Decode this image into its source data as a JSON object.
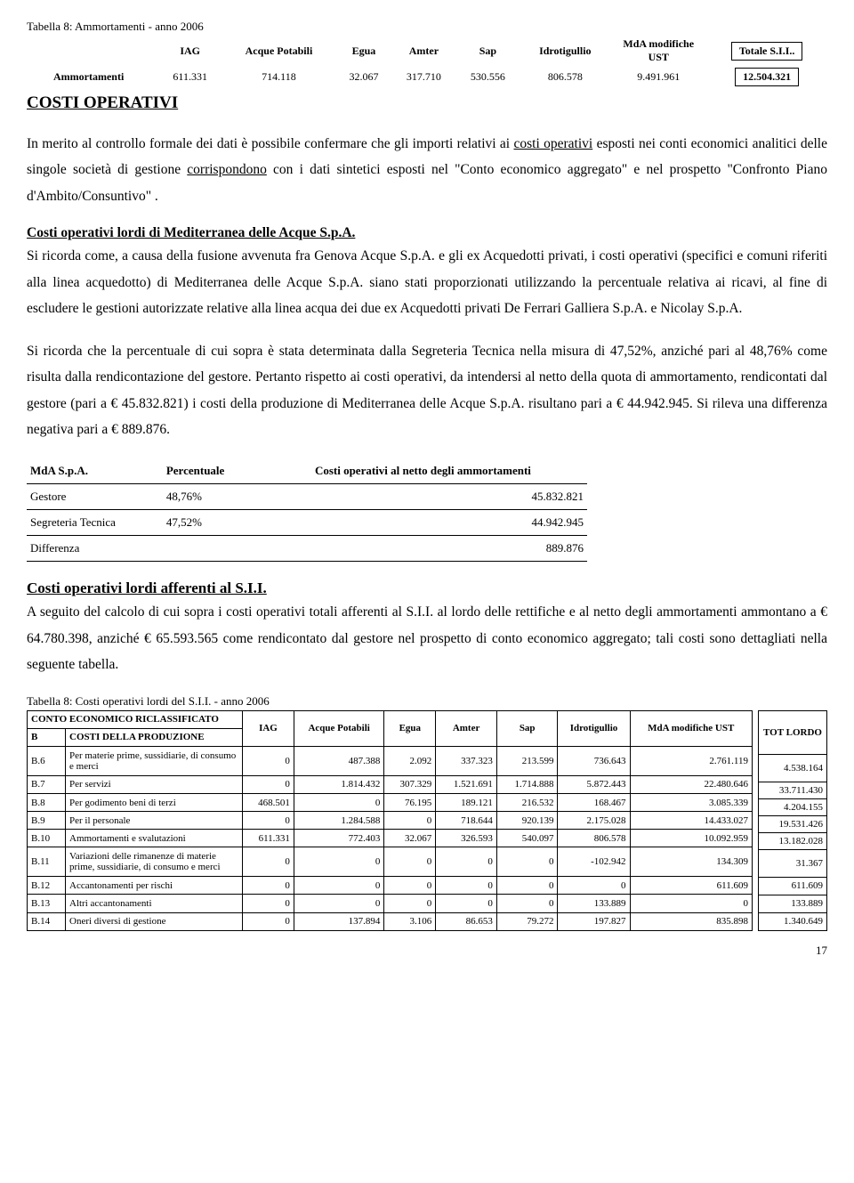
{
  "caption1": "Tabella 8: Ammortamenti - anno 2006",
  "t1": {
    "headers": [
      "IAG",
      "Acque Potabili",
      "Egua",
      "Amter",
      "Sap",
      "Idrotigullio",
      "MdA modifiche UST",
      "Totale S.I.I.."
    ],
    "rowlabel": "Ammortamenti",
    "row": [
      "611.331",
      "714.118",
      "32.067",
      "317.710",
      "530.556",
      "806.578",
      "9.491.961",
      "12.504.321"
    ]
  },
  "h1": "COSTI OPERATIVI",
  "p1a": "In merito al controllo formale dei dati  è possibile confermare che gli importi relativi ai ",
  "p1u1": "costi operativi",
  "p1b": " esposti nei conti economici analitici delle singole società di gestione ",
  "p1u2": "corrispondono",
  "p1c": "  con i dati sintetici esposti nel \"Conto economico aggregato\" e nel prospetto \"Confronto Piano d'Ambito/Consuntivo\" .",
  "sub1": "Costi operativi lordi  di Mediterranea delle Acque S.p.A.",
  "p2": "Si ricorda come, a causa della fusione avvenuta fra Genova Acque S.p.A. e gli ex Acquedotti privati, i costi operativi (specifici e comuni riferiti alla linea acquedotto) di Mediterranea delle Acque S.p.A. siano stati proporzionati utilizzando la percentuale relativa ai ricavi, al fine di escludere le gestioni autorizzate relative alla linea acqua dei due ex Acquedotti privati De Ferrari Galliera S.p.A. e Nicolay S.p.A.",
  "p3": "Si ricorda che la percentuale di cui sopra è stata determinata dalla Segreteria Tecnica nella misura di 47,52%, anziché pari al 48,76% come risulta dalla rendicontazione del gestore. Pertanto rispetto ai costi operativi, da intendersi al netto della quota di ammortamento,  rendicontati dal gestore (pari a €  45.832.821) i costi della produzione di Mediterranea delle Acque S.p.A. risultano pari a € 44.942.945. Si rileva una differenza negativa  pari a € 889.876.",
  "t2": {
    "h": [
      "MdA S.p.A.",
      "Percentuale",
      "Costi operativi al netto degli ammortamenti"
    ],
    "rows": [
      [
        "Gestore",
        "48,76%",
        "45.832.821"
      ],
      [
        "Segreteria Tecnica",
        "47,52%",
        "44.942.945"
      ],
      [
        "Differenza",
        "",
        "889.876"
      ]
    ]
  },
  "sub2": "Costi operativi lordi afferenti al S.I.I.",
  "p4": "A seguito del calcolo di cui sopra i costi operativi totali afferenti al S.I.I. al lordo delle rettifiche e al netto degli ammortamenti ammontano a € 64.780.398, anziché € 65.593.565 come rendicontato dal gestore nel prospetto di conto economico aggregato; tali costi sono dettagliati nella seguente tabella.",
  "caption2": "Tabella 8: Costi operativi lordi del S.I.I. - anno 2006",
  "t3": {
    "hA": "CONTO ECONOMICO RICLASSIFICATO",
    "hB": "B",
    "hBdesc": "COSTI DELLA PRODUZIONE",
    "cols": [
      "IAG",
      "Acque Potabili",
      "Egua",
      "Amter",
      "Sap",
      "Idrotigullio",
      "MdA modifiche UST"
    ],
    "tot": "TOT LORDO",
    "rows": [
      [
        "B.6",
        "Per materie prime, sussidiarie, di consumo e merci",
        "0",
        "487.388",
        "2.092",
        "337.323",
        "213.599",
        "736.643",
        "2.761.119",
        "4.538.164"
      ],
      [
        "B.7",
        "Per servizi",
        "0",
        "1.814.432",
        "307.329",
        "1.521.691",
        "1.714.888",
        "5.872.443",
        "22.480.646",
        "33.711.430"
      ],
      [
        "B.8",
        "Per godimento beni di terzi",
        "468.501",
        "0",
        "76.195",
        "189.121",
        "216.532",
        "168.467",
        "3.085.339",
        "4.204.155"
      ],
      [
        "B.9",
        "Per il personale",
        "0",
        "1.284.588",
        "0",
        "718.644",
        "920.139",
        "2.175.028",
        "14.433.027",
        "19.531.426"
      ],
      [
        "B.10",
        "Ammortamenti e svalutazioni",
        "611.331",
        "772.403",
        "32.067",
        "326.593",
        "540.097",
        "806.578",
        "10.092.959",
        "13.182.028"
      ],
      [
        "B.11",
        "Variazioni delle rimanenze di materie prime, sussidiarie, di consumo e merci",
        "0",
        "0",
        "0",
        "0",
        "0",
        "-102.942",
        "134.309",
        "31.367"
      ],
      [
        "B.12",
        "Accantonamenti per rischi",
        "0",
        "0",
        "0",
        "0",
        "0",
        "0",
        "611.609",
        "611.609"
      ],
      [
        "B.13",
        "Altri accantonamenti",
        "0",
        "0",
        "0",
        "0",
        "0",
        "133.889",
        "0",
        "133.889"
      ],
      [
        "B.14",
        "Oneri diversi di gestione",
        "0",
        "137.894",
        "3.106",
        "86.653",
        "79.272",
        "197.827",
        "835.898",
        "1.340.649"
      ]
    ]
  },
  "page": "17"
}
